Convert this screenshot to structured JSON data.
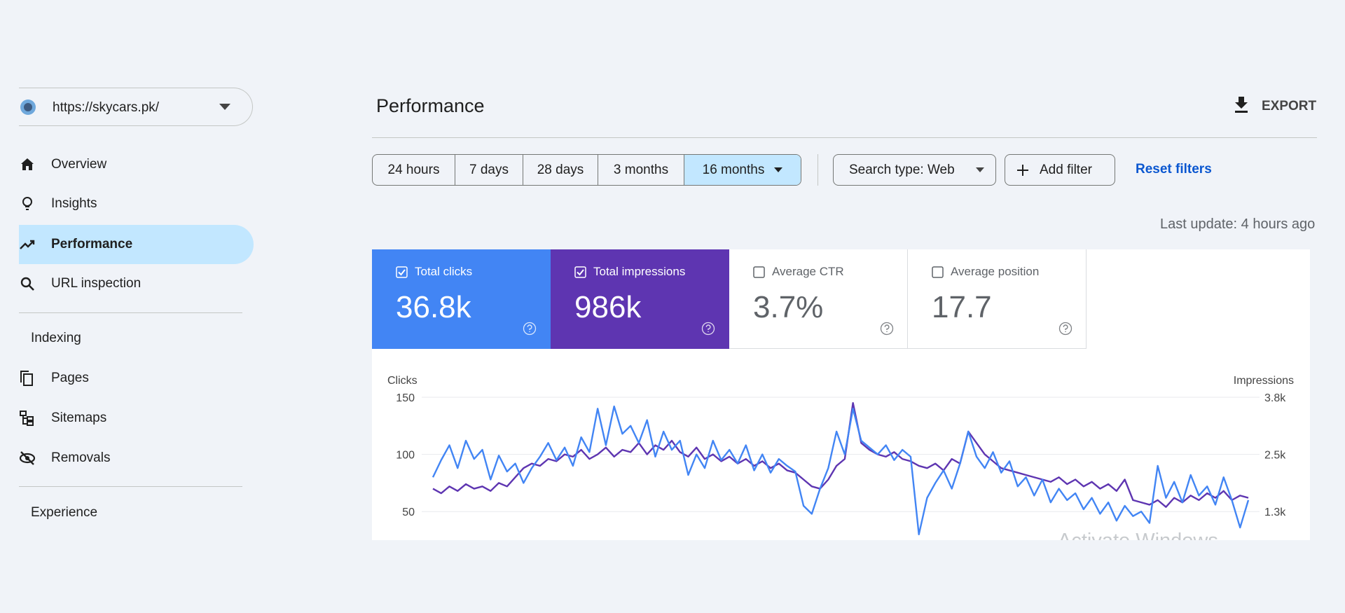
{
  "property": "https://skycars.pk/",
  "nav": [
    "Overview",
    "Insights",
    "Performance",
    "URL inspection"
  ],
  "sections": [
    {
      "title": "Indexing",
      "items": [
        "Pages",
        "Sitemaps",
        "Removals"
      ]
    },
    {
      "title": "Experience"
    }
  ],
  "header": {
    "title": "Performance",
    "export": "EXPORT"
  },
  "filters": {
    "ranges": [
      {
        "label": "24 hours",
        "active": false
      },
      {
        "label": "7 days",
        "active": false
      },
      {
        "label": "28 days",
        "active": false
      },
      {
        "label": "3 months",
        "active": false
      },
      {
        "label": "16 months",
        "active": true
      }
    ],
    "search_type": "Search type: Web",
    "add_filter": "Add filter",
    "reset": "Reset filters"
  },
  "last_update": "Last update: 4 hours ago",
  "metrics": [
    {
      "label": "Total clicks",
      "value": "36.8k",
      "checked": true,
      "color": "#4285f4"
    },
    {
      "label": "Total impressions",
      "value": "986k",
      "checked": true,
      "color": "#5e35b1"
    },
    {
      "label": "Average CTR",
      "value": "3.7%",
      "checked": false,
      "color": "#ffffff"
    },
    {
      "label": "Average position",
      "value": "17.7",
      "checked": false,
      "color": "#ffffff"
    }
  ],
  "chart_data": {
    "type": "line",
    "y_label": "Clicks",
    "y2_label": "Impressions",
    "ylim": [
      25,
      150
    ],
    "yticks": [
      50,
      100,
      150
    ],
    "y2lim": [
      625,
      3750
    ],
    "y2ticks": [
      {
        "value": 1250,
        "label": "1.3k"
      },
      {
        "value": 2500,
        "label": "2.5k"
      },
      {
        "value": 3750,
        "label": "3.8k"
      }
    ],
    "grid": true,
    "series": [
      {
        "name": "Impressions",
        "color": "#5e35b1",
        "axis": "y2",
        "values": [
          1750,
          1650,
          1800,
          1700,
          1850,
          1750,
          1800,
          1700,
          1875,
          1800,
          2000,
          2200,
          2300,
          2250,
          2400,
          2350,
          2500,
          2450,
          2600,
          2400,
          2500,
          2650,
          2450,
          2600,
          2550,
          2750,
          2500,
          2700,
          2600,
          2800,
          2550,
          2450,
          2650,
          2400,
          2500,
          2350,
          2450,
          2300,
          2400,
          2250,
          2350,
          2200,
          2300,
          2150,
          2100,
          1950,
          1800,
          1750,
          1950,
          2250,
          2400,
          3625,
          2750,
          2600,
          2500,
          2450,
          2550,
          2400,
          2350,
          2250,
          2200,
          2300,
          2150,
          2400,
          2300,
          3000,
          2750,
          2500,
          2350,
          2200,
          2150,
          2100,
          2050,
          2000,
          1950,
          1900,
          2000,
          1850,
          1950,
          1800,
          1900,
          1750,
          1850,
          1700,
          1950,
          1500,
          1450,
          1400,
          1500,
          1350,
          1550,
          1450,
          1600,
          1500,
          1650,
          1550,
          1700,
          1500,
          1600,
          1550
        ]
      },
      {
        "name": "Clicks",
        "color": "#4285f4",
        "values": [
          80,
          95,
          108,
          88,
          112,
          96,
          104,
          78,
          99,
          85,
          92,
          75,
          88,
          98,
          110,
          95,
          106,
          90,
          115,
          102,
          140,
          108,
          142,
          118,
          125,
          110,
          130,
          98,
          120,
          104,
          112,
          82,
          100,
          88,
          112,
          95,
          104,
          92,
          108,
          86,
          100,
          84,
          96,
          90,
          85,
          55,
          48,
          70,
          88,
          120,
          100,
          140,
          112,
          106,
          100,
          108,
          95,
          104,
          98,
          30,
          62,
          75,
          86,
          70,
          92,
          120,
          98,
          88,
          102,
          84,
          94,
          72,
          80,
          64,
          78,
          58,
          70,
          60,
          66,
          52,
          62,
          48,
          58,
          42,
          55,
          46,
          50,
          40,
          90,
          62,
          76,
          58,
          82,
          64,
          72,
          56,
          80,
          60,
          36,
          60
        ]
      }
    ]
  },
  "watermark": "Activate Windows"
}
